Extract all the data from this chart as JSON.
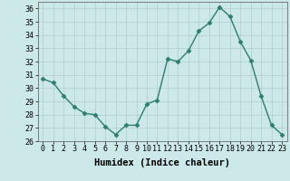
{
  "x": [
    0,
    1,
    2,
    3,
    4,
    5,
    6,
    7,
    8,
    9,
    10,
    11,
    12,
    13,
    14,
    15,
    16,
    17,
    18,
    19,
    20,
    21,
    22,
    23
  ],
  "y": [
    30.7,
    30.4,
    29.4,
    28.6,
    28.1,
    28.0,
    27.1,
    26.5,
    27.2,
    27.2,
    28.8,
    29.1,
    32.2,
    32.0,
    32.8,
    34.3,
    34.9,
    36.1,
    35.4,
    33.5,
    32.1,
    29.4,
    27.2,
    26.5
  ],
  "line_color": "#2e7d6e",
  "marker": "D",
  "marker_size": 2.5,
  "bg_color": "#cce8e8",
  "grid_color": "#b0cccc",
  "xlabel": "Humidex (Indice chaleur)",
  "ylim": [
    26,
    36.5
  ],
  "yticks": [
    26,
    27,
    28,
    29,
    30,
    31,
    32,
    33,
    34,
    35,
    36
  ],
  "xticks": [
    0,
    1,
    2,
    3,
    4,
    5,
    6,
    7,
    8,
    9,
    10,
    11,
    12,
    13,
    14,
    15,
    16,
    17,
    18,
    19,
    20,
    21,
    22,
    23
  ],
  "tick_fontsize": 6.0,
  "xlabel_fontsize": 7.5
}
